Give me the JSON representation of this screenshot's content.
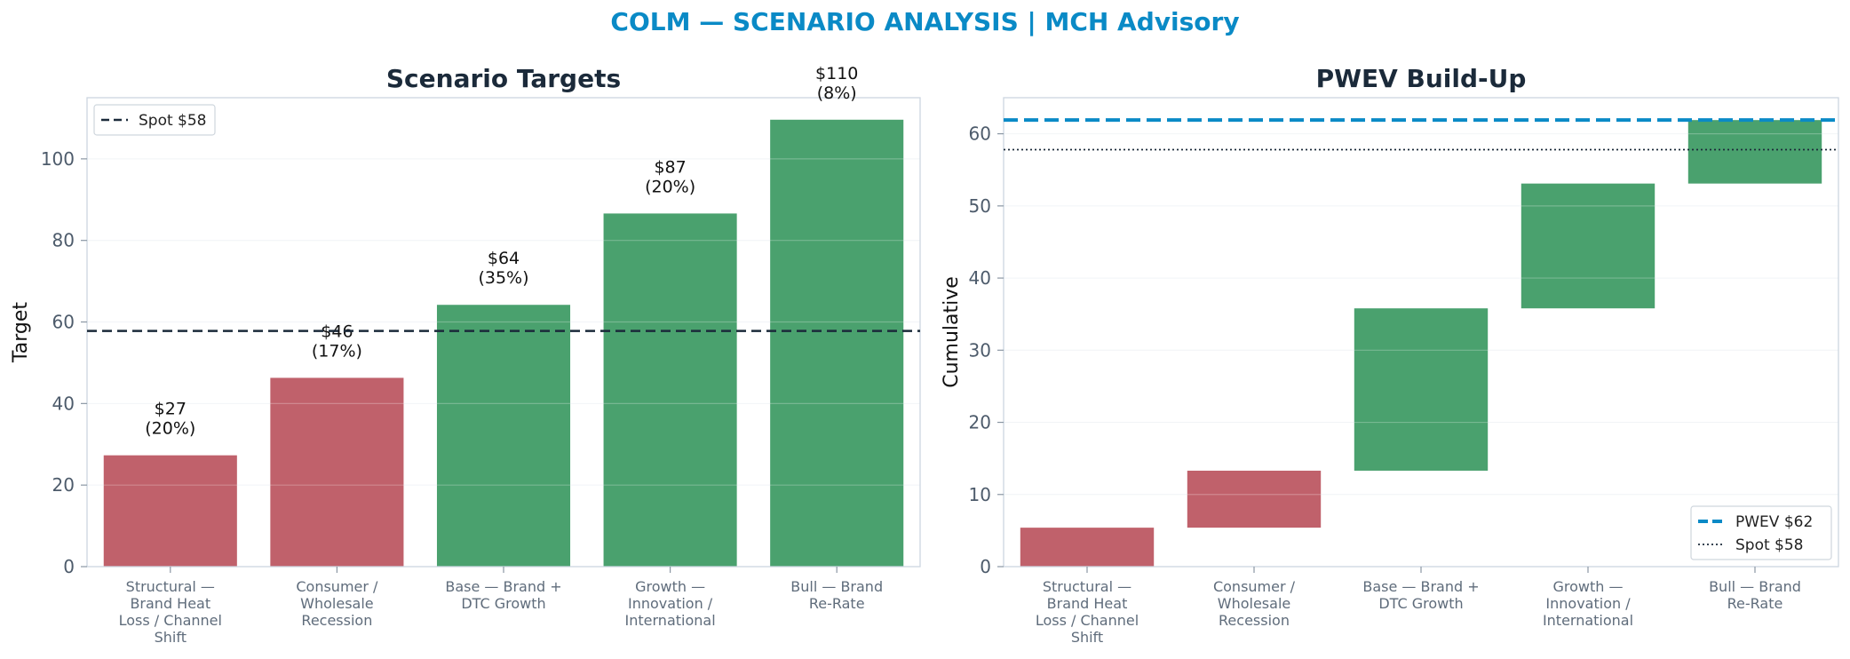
{
  "suptitle": "COLM — SCENARIO ANALYSIS | MCH Advisory",
  "colors": {
    "bear": "#c0616b",
    "bull": "#4aa16e",
    "pwev": "#0a8ac6",
    "spot": "#1b2a3a",
    "title": "#0a8ac6"
  },
  "chart_data": [
    {
      "type": "bar",
      "title": "Scenario Targets",
      "xlabel": "",
      "ylabel": "Target",
      "ylim": [
        0,
        115
      ],
      "yticks": [
        0,
        20,
        40,
        60,
        80,
        100
      ],
      "grid": true,
      "categories": [
        [
          "Structural —",
          "Brand Heat",
          "Loss / Channel",
          "Shift"
        ],
        [
          "Consumer /",
          "Wholesale",
          "Recession"
        ],
        [
          "Base — Brand +",
          "DTC Growth"
        ],
        [
          "Growth —",
          "Innovation /",
          "International"
        ],
        [
          "Bull — Brand",
          "Re-Rate"
        ]
      ],
      "values": [
        27.3,
        46.3,
        64.2,
        86.6,
        109.6
      ],
      "bar_colors": [
        "bear",
        "bear",
        "bull",
        "bull",
        "bull"
      ],
      "value_labels": [
        [
          "$27",
          "(20%)"
        ],
        [
          "$46",
          "(17%)"
        ],
        [
          "$64",
          "(35%)"
        ],
        [
          "$87",
          "(20%)"
        ],
        [
          "$110",
          "(8%)"
        ]
      ],
      "reference_lines": [
        {
          "name": "Spot $58",
          "value": 57.8,
          "style": "dashed",
          "color": "spot"
        }
      ],
      "legend": {
        "position": "top-left",
        "entries": [
          "Spot $58"
        ]
      }
    },
    {
      "type": "waterfall",
      "title": "PWEV Build-Up",
      "xlabel": "",
      "ylabel": "Cumulative",
      "ylim": [
        0,
        65
      ],
      "yticks": [
        0,
        10,
        20,
        30,
        40,
        50,
        60
      ],
      "grid": true,
      "categories": [
        [
          "Structural —",
          "Brand Heat",
          "Loss / Channel",
          "Shift"
        ],
        [
          "Consumer /",
          "Wholesale",
          "Recession"
        ],
        [
          "Base — Brand +",
          "DTC Growth"
        ],
        [
          "Growth —",
          "Innovation /",
          "International"
        ],
        [
          "Bull — Brand",
          "Re-Rate"
        ]
      ],
      "bars": [
        {
          "start": 0,
          "end": 5.4
        },
        {
          "start": 5.4,
          "end": 13.3
        },
        {
          "start": 13.3,
          "end": 35.8
        },
        {
          "start": 35.8,
          "end": 53.1
        },
        {
          "start": 53.1,
          "end": 61.9
        }
      ],
      "bar_colors": [
        "bear",
        "bear",
        "bull",
        "bull",
        "bull"
      ],
      "reference_lines": [
        {
          "name": "PWEV $62",
          "value": 61.9,
          "style": "dashed-thick",
          "color": "pwev"
        },
        {
          "name": "Spot $58",
          "value": 57.8,
          "style": "dotted",
          "color": "spot"
        }
      ],
      "legend": {
        "position": "bottom-right",
        "entries": [
          "PWEV $62",
          "Spot $58"
        ]
      }
    }
  ]
}
